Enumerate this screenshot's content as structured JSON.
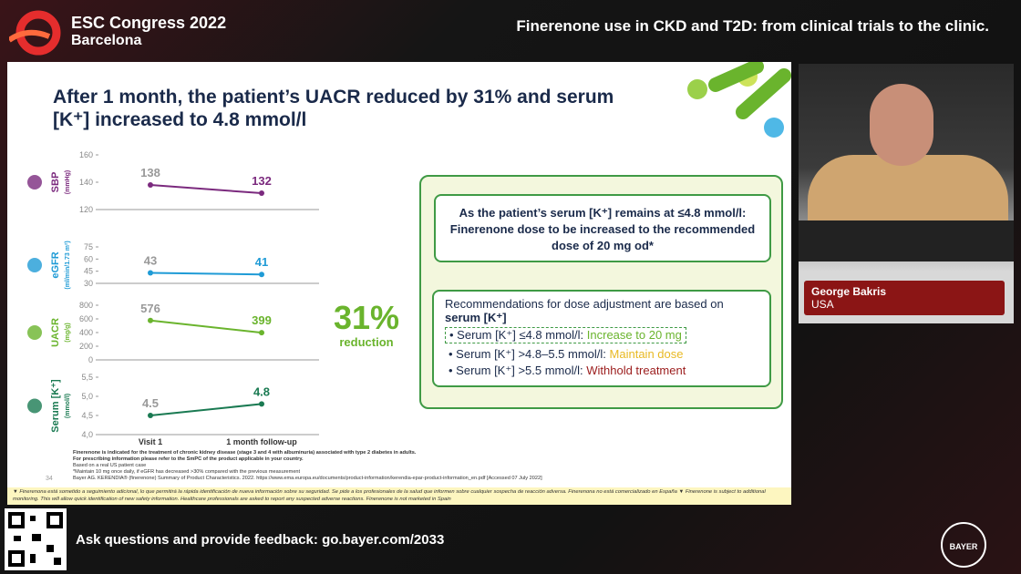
{
  "header": {
    "congress": "ESC Congress 2022",
    "city": "Barcelona",
    "session": "Finerenone use in CKD and T2D: from clinical trials to the clinic."
  },
  "slide": {
    "title": "After 1 month, the patient’s UACR reduced by 31% and serum [K⁺] increased to 4.8 mmol/l",
    "categories": [
      "Visit 1",
      "1 month follow-up"
    ],
    "panels": [
      {
        "name": "SBP",
        "unit": "(mmHg)",
        "color": "#7b2a7e",
        "ylim": [
          120,
          160
        ],
        "yticks": [
          160,
          140,
          120
        ],
        "values": [
          138,
          132
        ]
      },
      {
        "name": "eGFR",
        "unit": "(ml/min/1.73 m²)",
        "color": "#1f9bd6",
        "ylim": [
          30,
          75
        ],
        "yticks": [
          75,
          60,
          45,
          30
        ],
        "values": [
          43,
          41
        ]
      },
      {
        "name": "UACR",
        "unit": "(mg/g)",
        "color": "#6ab42d",
        "ylim": [
          0,
          800
        ],
        "yticks": [
          800,
          600,
          400,
          200,
          0
        ],
        "values": [
          576,
          399
        ]
      },
      {
        "name": "Serum [K⁺]",
        "unit": "(mmol/l)",
        "color": "#1a7a52",
        "ylim": [
          4.0,
          5.5
        ],
        "yticks": [
          {
            "value": 5.5,
            "label": "5,5"
          },
          {
            "value": 5.0,
            "label": "5,0"
          },
          {
            "value": 4.5,
            "label": "4,5"
          },
          {
            "value": 4.0,
            "label": "4,0"
          }
        ],
        "values": [
          4.5,
          4.8
        ]
      }
    ],
    "reduction": {
      "value": "31%",
      "label": "reduction"
    },
    "box1": "As the patient’s serum [K⁺] remains at ≤4.8 mmol/l: Finerenone dose to be increased to the recommended dose of 20 mg od*",
    "box2": {
      "heading": "Recommendations for dose adjustment are based on",
      "heading_bold": "serum [K⁺]",
      "items": [
        {
          "text": "Serum [K⁺] ≤4.8 mmol/l:",
          "action": "Increase to 20 mg"
        },
        {
          "text": "Serum [K⁺] >4.8–5.5 mmol/l:",
          "action": "Maintain dose"
        },
        {
          "text": "Serum [K⁺] >5.5 mmol/l:",
          "action": "Withhold treatment"
        }
      ]
    },
    "footnotes": [
      "Finerenone is indicated for the treatment of chronic kidney disease (stage 3 and 4 with albuminuria) associated with type 2 diabetes in adults.",
      "For prescribing information please refer to the SmPC of the product applicable in your country.",
      "Based on a real US patient case",
      "*Maintain 10 mg once daily, if eGFR has decreased >30% compared with the previous measurement",
      "Bayer AG. KERENDIA® (finerenone) Summary of Product Characteristics. 2022. https://www.ema.europa.eu/documents/product-information/kerendia-epar-product-information_en.pdf [Accessed 07 July 2022]"
    ],
    "page": "34",
    "disclaimer": "▼ Finerenona está sometido a seguimiento adicional, lo que permitirá la rápida identificación de nueva información sobre su seguridad. Se pide a los profesionales de la salud que informen sobre cualquier sospecha de reacción adversa. Finerenona no está comercializado en España ▼ Finerenone is subject to additional monitoring. This will allow quick identification of new safety information. Healthcare professionals are asked to report any suspected adverse reactions. Finerenone is not marketed in Spain"
  },
  "speaker": {
    "name": "George Bakris",
    "country": "USA"
  },
  "footer": {
    "feedback": "Ask questions and provide feedback: go.bayer.com/2033",
    "logo": "BAYER"
  }
}
